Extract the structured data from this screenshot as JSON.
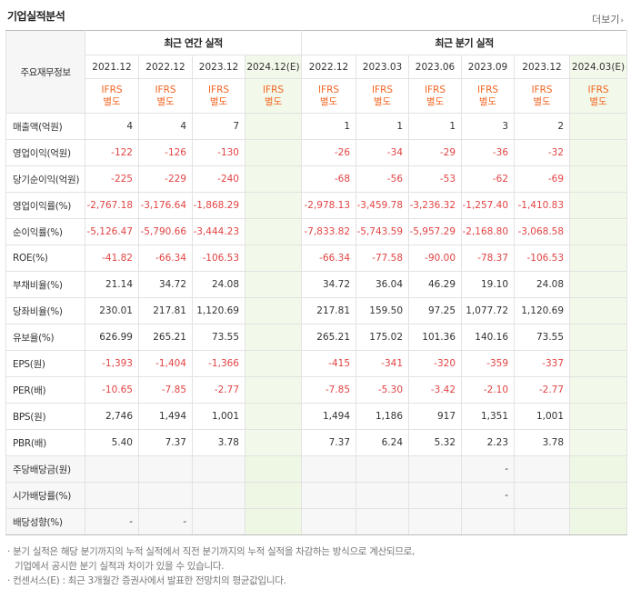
{
  "header": {
    "title": "기업실적분석",
    "more_label": "더보기"
  },
  "table": {
    "row_header_label": "주요재무정보",
    "group_annual": "최근 연간 실적",
    "group_quarter": "최근 분기 실적",
    "periods": [
      "2021.12",
      "2022.12",
      "2023.12",
      "2024.12(E)",
      "2022.12",
      "2023.03",
      "2023.06",
      "2023.09",
      "2023.12",
      "2024.03(E)"
    ],
    "basis_top": "IFRS",
    "basis_bottom": "별도",
    "rows": [
      {
        "label": "매출액(억원)",
        "values": [
          "4",
          "4",
          "7",
          "",
          "1",
          "1",
          "1",
          "3",
          "2",
          ""
        ]
      },
      {
        "label": "영업이익(억원)",
        "values": [
          "-122",
          "-126",
          "-130",
          "",
          "-26",
          "-34",
          "-29",
          "-36",
          "-32",
          ""
        ]
      },
      {
        "label": "당기순이익(억원)",
        "values": [
          "-225",
          "-229",
          "-240",
          "",
          "-68",
          "-56",
          "-53",
          "-62",
          "-69",
          ""
        ]
      },
      {
        "label": "영업이익률(%)",
        "values": [
          "-2,767.18",
          "-3,176.64",
          "-1,868.29",
          "",
          "-2,978.13",
          "-3,459.78",
          "-3,236.32",
          "-1,257.40",
          "-1,410.83",
          ""
        ]
      },
      {
        "label": "순이익률(%)",
        "values": [
          "-5,126.47",
          "-5,790.66",
          "-3,444.23",
          "",
          "-7,833.82",
          "-5,743.59",
          "-5,957.29",
          "-2,168.80",
          "-3,068.58",
          ""
        ]
      },
      {
        "label": "ROE(%)",
        "values": [
          "-41.82",
          "-66.34",
          "-106.53",
          "",
          "-66.34",
          "-77.58",
          "-90.00",
          "-78.37",
          "-106.53",
          ""
        ]
      },
      {
        "label": "부채비율(%)",
        "values": [
          "21.14",
          "34.72",
          "24.08",
          "",
          "34.72",
          "36.04",
          "46.29",
          "19.10",
          "24.08",
          ""
        ]
      },
      {
        "label": "당좌비율(%)",
        "values": [
          "230.01",
          "217.81",
          "1,120.69",
          "",
          "217.81",
          "159.50",
          "97.25",
          "1,077.72",
          "1,120.69",
          ""
        ]
      },
      {
        "label": "유보율(%)",
        "values": [
          "626.99",
          "265.21",
          "73.55",
          "",
          "265.21",
          "175.02",
          "101.36",
          "140.16",
          "73.55",
          ""
        ]
      },
      {
        "label": "EPS(원)",
        "values": [
          "-1,393",
          "-1,404",
          "-1,366",
          "",
          "-415",
          "-341",
          "-320",
          "-359",
          "-337",
          ""
        ]
      },
      {
        "label": "PER(배)",
        "values": [
          "-10.65",
          "-7.85",
          "-2.77",
          "",
          "-7.85",
          "-5.30",
          "-3.42",
          "-2.10",
          "-2.77",
          ""
        ]
      },
      {
        "label": "BPS(원)",
        "values": [
          "2,746",
          "1,494",
          "1,001",
          "",
          "1,494",
          "1,186",
          "917",
          "1,351",
          "1,001",
          ""
        ]
      },
      {
        "label": "PBR(배)",
        "values": [
          "5.40",
          "7.37",
          "3.78",
          "",
          "7.37",
          "6.24",
          "5.32",
          "2.23",
          "3.78",
          ""
        ]
      },
      {
        "label": "주당배당금(원)",
        "values": [
          "",
          "",
          "",
          "",
          "",
          "",
          "",
          "-",
          "",
          ""
        ]
      },
      {
        "label": "시가배당률(%)",
        "values": [
          "",
          "",
          "",
          "",
          "",
          "",
          "",
          "-",
          "",
          ""
        ]
      },
      {
        "label": "배당성향(%)",
        "values": [
          "-",
          "-",
          "",
          "",
          "",
          "",
          "",
          "",
          "",
          ""
        ]
      }
    ]
  },
  "notes": {
    "line1": "· 분기 실적은 해당 분기까지의 누적 실적에서 직전 분기까지의 누적 실적을 차감하는 방식으로 계산되므로,",
    "line2": "기업에서 공시한 분기 실적과 차이가 있을 수 있습니다.",
    "line3": "· 컨센서스(E) : 최근 3개월간 증권사에서 발표한 전망치의 평균값입니다."
  },
  "colors": {
    "negative": "#e24343",
    "ifrs": "#f26522",
    "estimate_bg": "#f3f9ea"
  }
}
